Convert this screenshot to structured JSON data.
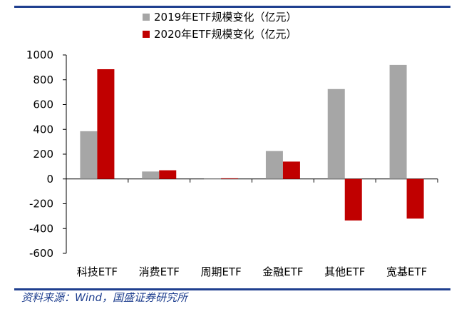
{
  "chart_data": {
    "type": "bar",
    "categories": [
      "科技ETF",
      "消费ETF",
      "周期ETF",
      "金融ETF",
      "其他ETF",
      "宽基ETF"
    ],
    "series": [
      {
        "name": "2019年ETF规模变化（亿元）",
        "color": "#a6a6a6",
        "values": [
          385,
          60,
          0,
          225,
          725,
          920
        ]
      },
      {
        "name": "2020年ETF规模变化（亿元）",
        "color": "#c00000",
        "values": [
          885,
          70,
          5,
          140,
          -335,
          -320
        ]
      }
    ],
    "ylim": [
      -600,
      1000
    ],
    "yticks": [
      -600,
      -400,
      -200,
      0,
      200,
      400,
      600,
      800,
      1000
    ],
    "ytick_labels": [
      "-600",
      "-400",
      "-200",
      "0",
      "200",
      "400",
      "600",
      "800",
      "1000"
    ],
    "title": "",
    "xlabel": "",
    "ylabel": "",
    "legend_position": "top-center",
    "grid": false
  },
  "source_note": "资料来源：Wind，国盛证券研究所",
  "colors": {
    "rule": "#1f3f8f"
  }
}
